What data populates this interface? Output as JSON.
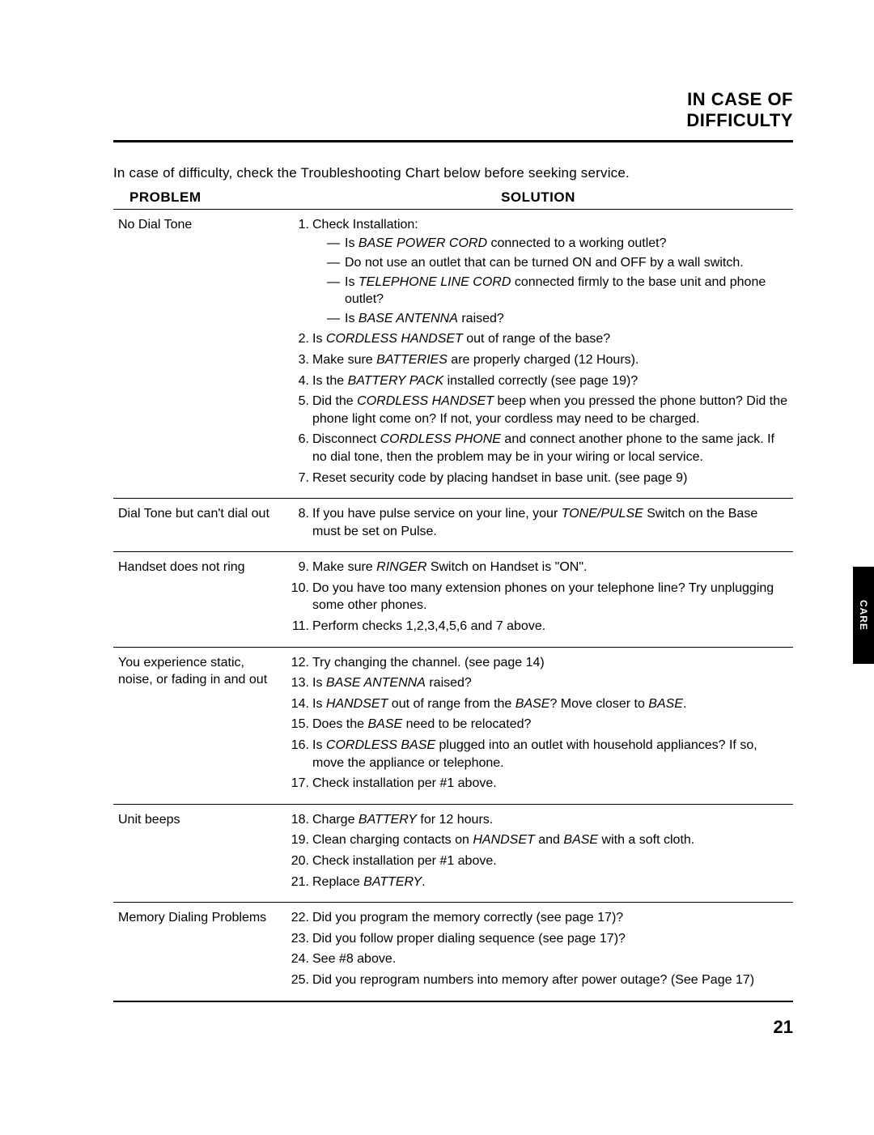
{
  "header": {
    "line1": "IN CASE OF",
    "line2": "DIFFICULTY"
  },
  "intro": "In case of difficulty, check the Troubleshooting Chart below before seeking service.",
  "columns": {
    "problem": "PROBLEM",
    "solution": "SOLUTION"
  },
  "side_tab": "CARE",
  "page_number": "21",
  "rows": [
    {
      "problem": "No Dial Tone",
      "items": [
        {
          "n": "1.",
          "text_before": "Check Installation:",
          "sub": [
            {
              "pre": "Is ",
              "ital": "BASE POWER CORD",
              "post": " connected to a working outlet?"
            },
            {
              "pre": "Do not use an outlet that can be turned ON and OFF by a wall switch.",
              "ital": "",
              "post": ""
            },
            {
              "pre": "Is ",
              "ital": "TELEPHONE LINE CORD",
              "post": " connected firmly to the base unit and phone outlet?"
            },
            {
              "pre": "Is ",
              "ital": "BASE ANTENNA",
              "post": " raised?"
            }
          ]
        },
        {
          "n": "2.",
          "pre": "Is ",
          "ital": "CORDLESS HANDSET",
          "post": " out of range of the base?"
        },
        {
          "n": "3.",
          "pre": "Make sure ",
          "ital": "BATTERIES",
          "post": " are properly charged (12 Hours)."
        },
        {
          "n": "4.",
          "pre": "Is the ",
          "ital": "BATTERY PACK",
          "post": " installed correctly (see page 19)?"
        },
        {
          "n": "5.",
          "pre": "Did the ",
          "ital": "CORDLESS HANDSET",
          "post": " beep when you pressed the phone button? Did the phone light come on? If not, your cordless may need to be charged."
        },
        {
          "n": "6.",
          "pre": "Disconnect ",
          "ital": "CORDLESS PHONE",
          "post": " and connect another phone to the same jack. If no dial tone, then the problem may be in your wiring or local service."
        },
        {
          "n": "7.",
          "pre": "Reset security code by placing handset in base unit. (see page 9)",
          "ital": "",
          "post": ""
        }
      ]
    },
    {
      "problem": "Dial Tone but can't dial out",
      "items": [
        {
          "n": "8.",
          "pre": "If you have pulse service on your line, your ",
          "ital": "TONE/PULSE",
          "post": " Switch on the Base must be set on Pulse."
        }
      ]
    },
    {
      "problem": "Handset does not ring",
      "items": [
        {
          "n": "9.",
          "pre": "Make sure ",
          "ital": "RINGER",
          "post": " Switch on Handset is \"ON\"."
        },
        {
          "n": "10.",
          "pre": "Do you have too many extension phones on your telephone line? Try unplugging some other phones.",
          "ital": "",
          "post": ""
        },
        {
          "n": "11.",
          "pre": "Perform checks 1,2,3,4,5,6 and 7 above.",
          "ital": "",
          "post": ""
        }
      ]
    },
    {
      "problem": "You experience static, noise, or fading in and out",
      "items": [
        {
          "n": "12.",
          "pre": "Try changing the channel. (see page 14)",
          "ital": "",
          "post": ""
        },
        {
          "n": "13.",
          "pre": "Is ",
          "ital": "BASE ANTENNA",
          "post": " raised?"
        },
        {
          "n": "14.",
          "pre": "Is ",
          "ital": "HANDSET",
          "post": " out of range from the ",
          "ital2": "BASE",
          "post2": "? Move closer to ",
          "ital3": "BASE",
          "post3": "."
        },
        {
          "n": "15.",
          "pre": "Does the ",
          "ital": "BASE",
          "post": " need to be relocated?"
        },
        {
          "n": "16.",
          "pre": "Is ",
          "ital": "CORDLESS BASE",
          "post": " plugged into an outlet with household appliances? If so, move the appliance or telephone."
        },
        {
          "n": "17.",
          "pre": "Check installation per #1 above.",
          "ital": "",
          "post": ""
        }
      ]
    },
    {
      "problem": "Unit beeps",
      "items": [
        {
          "n": "18.",
          "pre": "Charge ",
          "ital": "BATTERY",
          "post": " for 12 hours."
        },
        {
          "n": "19.",
          "pre": "Clean charging contacts on ",
          "ital": "HANDSET",
          "post": " and ",
          "ital2": "BASE",
          "post2": " with a soft cloth."
        },
        {
          "n": "20.",
          "pre": "Check installation per #1 above.",
          "ital": "",
          "post": ""
        },
        {
          "n": "21.",
          "pre": "Replace ",
          "ital": "BATTERY",
          "post": "."
        }
      ]
    },
    {
      "problem": "Memory Dialing Problems",
      "items": [
        {
          "n": "22.",
          "pre": "Did you program the memory correctly (see page 17)?",
          "ital": "",
          "post": ""
        },
        {
          "n": "23.",
          "pre": "Did you follow proper dialing sequence (see page 17)?",
          "ital": "",
          "post": ""
        },
        {
          "n": "24.",
          "pre": "See #8 above.",
          "ital": "",
          "post": ""
        },
        {
          "n": "25.",
          "pre": "Did you reprogram numbers into memory after power outage? (See Page 17)",
          "ital": "",
          "post": ""
        }
      ]
    }
  ]
}
